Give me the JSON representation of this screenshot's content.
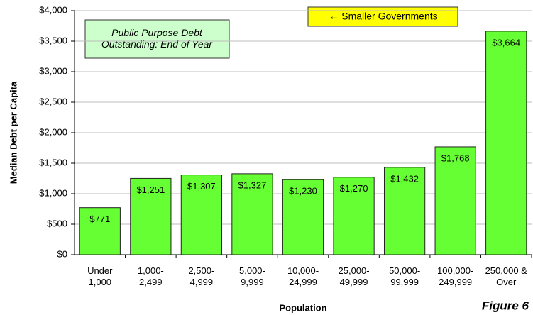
{
  "chart_data": {
    "type": "bar",
    "y_label": "Median Debt per Capita",
    "x_label": "Population",
    "annotations": [
      "Public Purpose Debt\nOutstanding: End of Year",
      "← Smaller Governments",
      "Figure 6"
    ],
    "categories": [
      "Under\n1,000",
      "1,000-\n2,499",
      "2,500-\n4,999",
      "5,000-\n9,999",
      "10,000-\n24,999",
      "25,000-\n49,999",
      "50,000-\n99,999",
      "100,000-\n249,999",
      "250,000 &\nOver"
    ],
    "values": [
      771,
      1251,
      1307,
      1327,
      1230,
      1270,
      1432,
      1768,
      3664
    ],
    "value_labels": [
      "$771",
      "$1,251",
      "$1,307",
      "$1,327",
      "$1,230",
      "$1,270",
      "$1,432",
      "$1,768",
      "$3,664"
    ],
    "color": "#66ff33",
    "ylim": [
      0,
      4000
    ],
    "yticks": [
      {
        "value": 0,
        "label": "$0"
      },
      {
        "value": 500,
        "label": "$500"
      },
      {
        "value": 1000,
        "label": "$1,000"
      },
      {
        "value": 1500,
        "label": "$1,500"
      },
      {
        "value": 2000,
        "label": "$2,000"
      },
      {
        "value": 2500,
        "label": "$2,500"
      },
      {
        "value": 3000,
        "label": "$3,000"
      },
      {
        "value": 3500,
        "label": "$3,500"
      },
      {
        "value": 4000,
        "label": "$4,000"
      }
    ],
    "grid": true
  }
}
